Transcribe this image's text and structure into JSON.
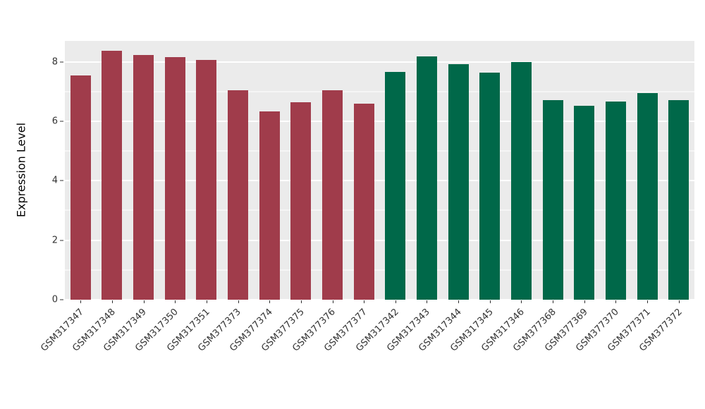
{
  "chart_data": {
    "type": "bar",
    "title": "",
    "xlabel": "",
    "ylabel": "Expression Level",
    "ylim": [
      0,
      8.7
    ],
    "yticks": [
      0,
      2,
      4,
      6,
      8
    ],
    "minor_gridlines": [
      1,
      3,
      5,
      7
    ],
    "grid": "on",
    "legend": "none",
    "panel_bg": "#EBEBEB",
    "grid_color": "#FFFFFF",
    "axis_text_color": "#333333",
    "categories": [
      "GSM317347",
      "GSM317348",
      "GSM317349",
      "GSM317350",
      "GSM317351",
      "GSM377373",
      "GSM377374",
      "GSM377375",
      "GSM377376",
      "GSM377377",
      "GSM317342",
      "GSM317343",
      "GSM317344",
      "GSM317345",
      "GSM317346",
      "GSM377368",
      "GSM377369",
      "GSM377370",
      "GSM377371",
      "GSM377372"
    ],
    "values": [
      7.55,
      8.36,
      8.22,
      8.15,
      8.05,
      7.05,
      6.34,
      6.63,
      7.05,
      6.58,
      7.65,
      8.19,
      7.91,
      7.63,
      7.98,
      6.72,
      6.53,
      6.67,
      6.94,
      6.7
    ],
    "groups": [
      "group1",
      "group1",
      "group1",
      "group1",
      "group1",
      "group1",
      "group1",
      "group1",
      "group1",
      "group1",
      "group2",
      "group2",
      "group2",
      "group2",
      "group2",
      "group2",
      "group2",
      "group2",
      "group2",
      "group2"
    ],
    "group_colors": {
      "group1": "#A03C4B",
      "group2": "#006849"
    }
  }
}
